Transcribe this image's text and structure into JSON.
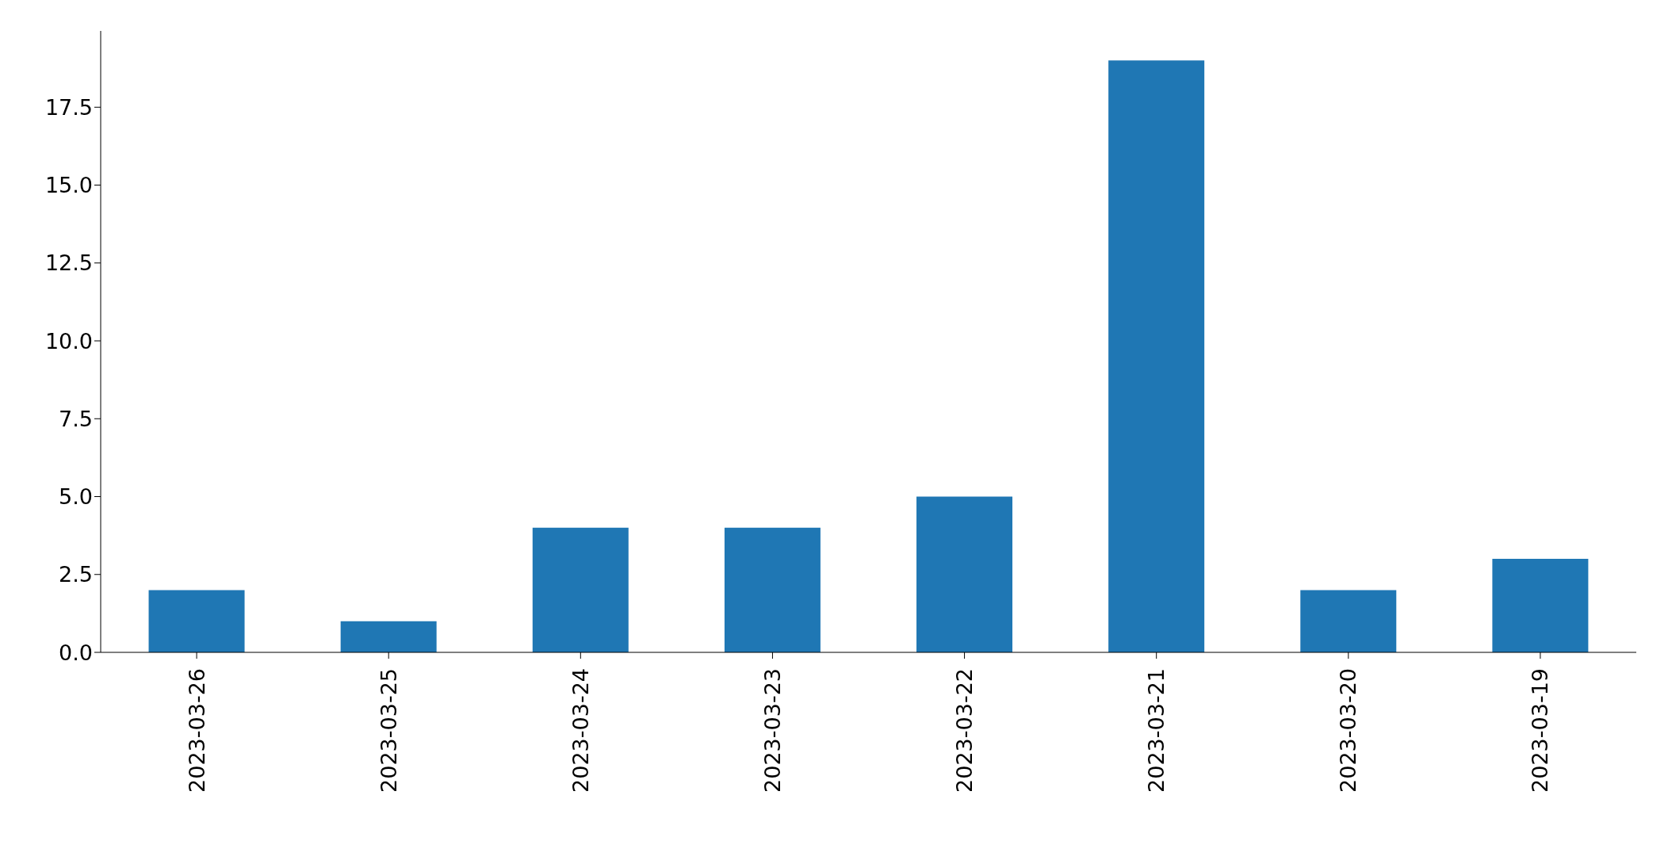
{
  "chart_data": {
    "type": "bar",
    "categories": [
      "2023-03-26",
      "2023-03-25",
      "2023-03-24",
      "2023-03-23",
      "2023-03-22",
      "2023-03-21",
      "2023-03-20",
      "2023-03-19"
    ],
    "values": [
      2,
      1,
      4,
      4,
      5,
      19,
      2,
      3
    ],
    "color": "#1f77b4",
    "ylim": [
      0,
      19.95
    ],
    "yticks": [
      {
        "value": 0,
        "label": "0.0"
      },
      {
        "value": 2.5,
        "label": "2.5"
      },
      {
        "value": 5,
        "label": "5.0"
      },
      {
        "value": 7.5,
        "label": "7.5"
      },
      {
        "value": 10,
        "label": "10.0"
      },
      {
        "value": 12.5,
        "label": "12.5"
      },
      {
        "value": 15,
        "label": "15.0"
      },
      {
        "value": 17.5,
        "label": "17.5"
      }
    ],
    "grid": false,
    "legend": false
  }
}
